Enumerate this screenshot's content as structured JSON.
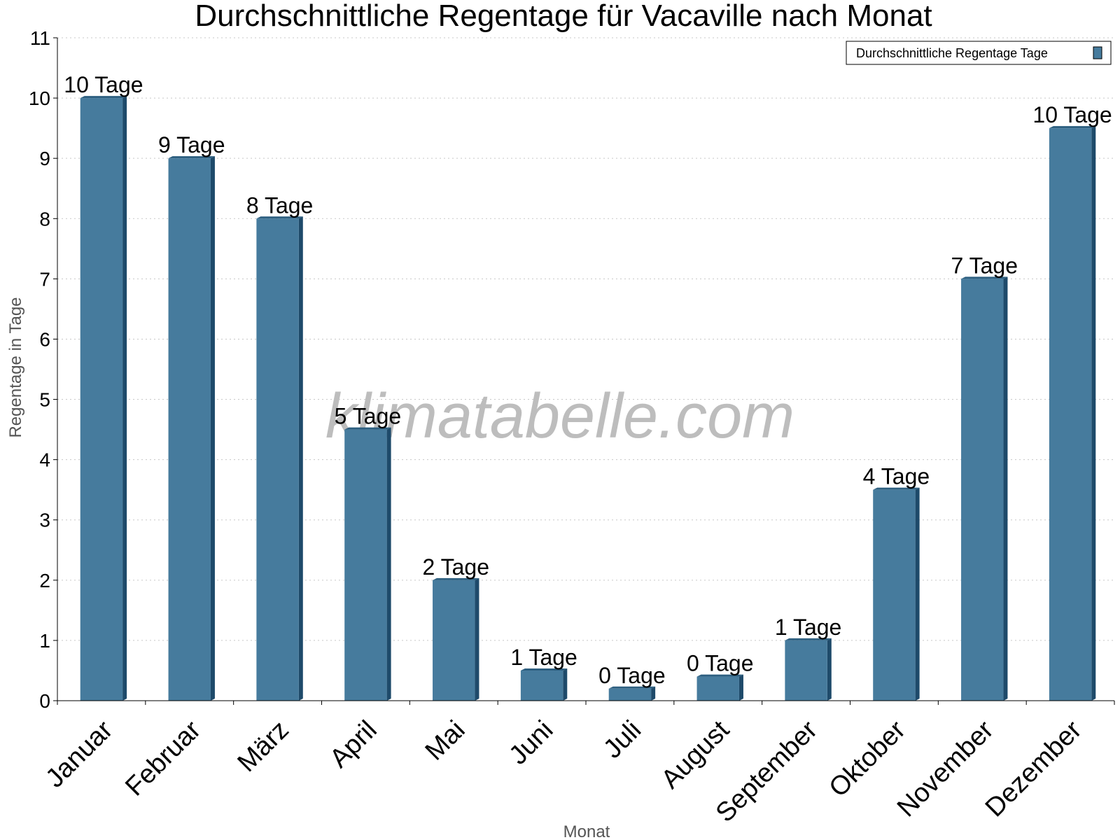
{
  "chart_data": {
    "type": "bar",
    "title": "Durchschnittliche Regentage für Vacaville nach Monat",
    "xlabel": "Monat",
    "ylabel": "Regentage in Tage",
    "ylim": [
      0,
      11
    ],
    "yticks": [
      0,
      1,
      2,
      3,
      4,
      5,
      6,
      7,
      8,
      9,
      10,
      11
    ],
    "grid": true,
    "legend_position": "top-right",
    "categories": [
      "Januar",
      "Februar",
      "März",
      "April",
      "Mai",
      "Juni",
      "Juli",
      "August",
      "September",
      "Oktober",
      "November",
      "Dezember"
    ],
    "series": [
      {
        "name": "Durchschnittliche Regentage Tage",
        "values": [
          10,
          9,
          8,
          4.5,
          2,
          0.5,
          0.2,
          0.4,
          1,
          3.5,
          7,
          9.5
        ],
        "labels": [
          "10 Tage",
          "9 Tage",
          "8 Tage",
          "5 Tage",
          "2 Tage",
          "1 Tage",
          "0 Tage",
          "0 Tage",
          "1 Tage",
          "4 Tage",
          "7 Tage",
          "10 Tage"
        ]
      }
    ],
    "watermark": "klimatabelle.com"
  },
  "colors": {
    "bar_front": "#467b9d",
    "bar_side": "#1e4a6a",
    "bar_top": "#2d5f80",
    "grid": "#c8c8c8",
    "axis": "#000000"
  }
}
